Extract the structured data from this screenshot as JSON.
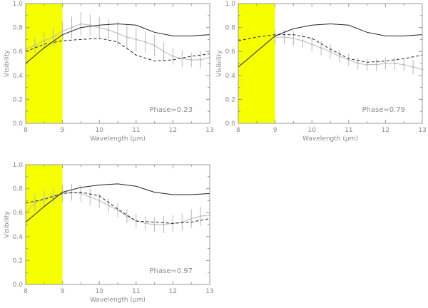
{
  "colors": {
    "highlight": "#f5ff00",
    "model_solid": "#222222",
    "model_dashed": "#222222",
    "observations": "#b8b8b8",
    "axis": "#9a9a9a",
    "text": "#8a8a8a"
  },
  "chart_data": [
    {
      "type": "line",
      "xlabel": "Wavelength (μm)",
      "ylabel": "Visibility",
      "xlim": [
        8,
        13
      ],
      "ylim": [
        0,
        1
      ],
      "xticks": [
        "8",
        "9",
        "10",
        "11",
        "12",
        "13"
      ],
      "yticks": [
        "0.0",
        "0.2",
        "0.4",
        "0.6",
        "0.8",
        "1.0"
      ],
      "highlight_band": [
        8,
        9
      ],
      "annotation": "Phase=0.23",
      "series": [
        {
          "style": "solid",
          "x": [
            8,
            8.5,
            9,
            9.5,
            10,
            10.5,
            11,
            11.5,
            12,
            12.5,
            13
          ],
          "y": [
            0.5,
            0.63,
            0.74,
            0.8,
            0.82,
            0.83,
            0.82,
            0.76,
            0.73,
            0.73,
            0.74
          ]
        },
        {
          "style": "dashed",
          "x": [
            8,
            8.5,
            9,
            9.5,
            10,
            10.5,
            11,
            11.5,
            12,
            12.5,
            13
          ],
          "y": [
            0.6,
            0.66,
            0.69,
            0.7,
            0.71,
            0.68,
            0.57,
            0.52,
            0.53,
            0.56,
            0.58
          ]
        },
        {
          "style": "errorbars",
          "x": [
            8,
            8.25,
            8.5,
            8.75,
            9,
            9.25,
            9.5,
            9.75,
            10,
            10.25,
            10.5,
            10.75,
            11,
            11.25,
            11.5,
            11.75,
            12,
            12.25,
            12.5,
            12.75,
            13
          ],
          "y": [
            0.62,
            0.65,
            0.69,
            0.72,
            0.77,
            0.8,
            0.83,
            0.82,
            0.8,
            0.78,
            0.75,
            0.72,
            0.7,
            0.68,
            0.65,
            0.6,
            0.56,
            0.54,
            0.53,
            0.53,
            0.55
          ],
          "err": [
            0.05,
            0.06,
            0.07,
            0.08,
            0.08,
            0.09,
            0.1,
            0.09,
            0.09,
            0.09,
            0.1,
            0.1,
            0.1,
            0.09,
            0.09,
            0.08,
            0.07,
            0.07,
            0.06,
            0.07,
            0.08
          ]
        }
      ]
    },
    {
      "type": "line",
      "xlabel": "Wavelength (μm)",
      "ylabel": "Visibility",
      "xlim": [
        8,
        13
      ],
      "ylim": [
        0,
        1
      ],
      "xticks": [
        "8",
        "9",
        "10",
        "11",
        "12",
        "13"
      ],
      "yticks": [
        "0.0",
        "0.2",
        "0.4",
        "0.6",
        "0.8",
        "1.0"
      ],
      "highlight_band": [
        8,
        9
      ],
      "annotation": "Phase=0.79",
      "series": [
        {
          "style": "solid",
          "x": [
            8,
            8.5,
            9,
            9.5,
            10,
            10.5,
            11,
            11.5,
            12,
            12.5,
            13
          ],
          "y": [
            0.47,
            0.6,
            0.73,
            0.79,
            0.82,
            0.83,
            0.82,
            0.76,
            0.73,
            0.73,
            0.74
          ]
        },
        {
          "style": "dashed",
          "x": [
            8,
            8.5,
            9,
            9.5,
            10,
            10.5,
            11,
            11.5,
            12,
            12.5,
            13
          ],
          "y": [
            0.69,
            0.72,
            0.74,
            0.74,
            0.71,
            0.62,
            0.54,
            0.51,
            0.52,
            0.54,
            0.57
          ]
        },
        {
          "style": "errorbars",
          "x": [
            9,
            9.25,
            9.5,
            9.75,
            10,
            10.25,
            10.5,
            10.75,
            11,
            11.25,
            11.5,
            11.75,
            12,
            12.25,
            12.5,
            12.75,
            13
          ],
          "y": [
            0.72,
            0.72,
            0.71,
            0.69,
            0.66,
            0.63,
            0.6,
            0.56,
            0.53,
            0.5,
            0.49,
            0.49,
            0.5,
            0.5,
            0.49,
            0.47,
            0.45
          ],
          "err": [
            0.06,
            0.06,
            0.06,
            0.06,
            0.06,
            0.06,
            0.06,
            0.05,
            0.05,
            0.05,
            0.05,
            0.05,
            0.05,
            0.05,
            0.05,
            0.06,
            0.07
          ]
        }
      ]
    },
    {
      "type": "line",
      "xlabel": "Wavelength (μm)",
      "ylabel": "Visibility",
      "xlim": [
        8,
        13
      ],
      "ylim": [
        0,
        1
      ],
      "xticks": [
        "8",
        "9",
        "10",
        "11",
        "12",
        "13"
      ],
      "yticks": [
        "0.0",
        "0.2",
        "0.4",
        "0.6",
        "0.8",
        "1.0"
      ],
      "highlight_band": [
        8,
        9
      ],
      "annotation": "Phase=0.97",
      "series": [
        {
          "style": "solid",
          "x": [
            8,
            8.5,
            9,
            9.5,
            10,
            10.5,
            11,
            11.5,
            12,
            12.5,
            13
          ],
          "y": [
            0.52,
            0.65,
            0.77,
            0.81,
            0.83,
            0.84,
            0.82,
            0.77,
            0.75,
            0.75,
            0.76
          ]
        },
        {
          "style": "dashed",
          "x": [
            8,
            8.5,
            9,
            9.5,
            10,
            10.5,
            11,
            11.5,
            12,
            12.5,
            13
          ],
          "y": [
            0.68,
            0.71,
            0.76,
            0.77,
            0.74,
            0.63,
            0.53,
            0.52,
            0.51,
            0.52,
            0.55
          ]
        },
        {
          "style": "errorbars",
          "x": [
            8,
            8.25,
            8.5,
            8.75,
            9,
            9.25,
            9.5,
            9.75,
            10,
            10.25,
            10.5,
            10.75,
            11,
            11.25,
            11.5,
            11.75,
            12,
            12.25,
            12.5,
            12.75,
            13
          ],
          "y": [
            0.6,
            0.68,
            0.72,
            0.74,
            0.76,
            0.77,
            0.76,
            0.73,
            0.7,
            0.66,
            0.62,
            0.57,
            0.53,
            0.51,
            0.5,
            0.5,
            0.51,
            0.52,
            0.55,
            0.57,
            0.58
          ],
          "err": [
            0.06,
            0.07,
            0.07,
            0.07,
            0.07,
            0.07,
            0.07,
            0.07,
            0.06,
            0.06,
            0.06,
            0.06,
            0.06,
            0.06,
            0.06,
            0.07,
            0.07,
            0.07,
            0.08,
            0.08,
            0.08
          ]
        }
      ]
    }
  ]
}
